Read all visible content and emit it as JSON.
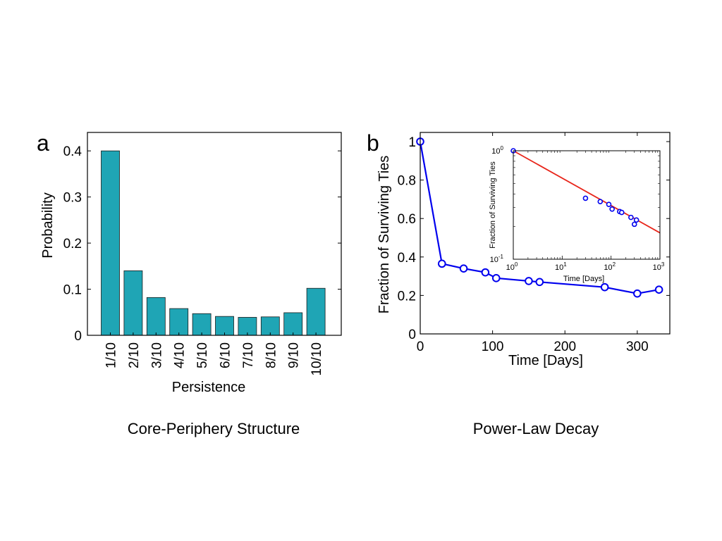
{
  "captions": {
    "left": "Core-Periphery Structure",
    "right": "Power-Law Decay"
  },
  "chart_data": [
    {
      "panel": "a",
      "type": "bar",
      "title": "",
      "xlabel": "Persistence",
      "ylabel": "Probability",
      "categories": [
        "1/10",
        "2/10",
        "3/10",
        "4/10",
        "5/10",
        "6/10",
        "7/10",
        "8/10",
        "9/10",
        "10/10"
      ],
      "values": [
        0.4,
        0.14,
        0.082,
        0.058,
        0.047,
        0.041,
        0.039,
        0.04,
        0.049,
        0.102
      ],
      "ylim": [
        0,
        0.44
      ],
      "yticks": [
        0,
        0.1,
        0.2,
        0.3,
        0.4
      ],
      "ytick_labels": [
        "0",
        "0.1",
        "0.2",
        "0.3",
        "0.4"
      ],
      "bar_color": "#1fa5b5",
      "grid": false
    },
    {
      "panel": "b",
      "type": "line",
      "title": "",
      "xlabel": "Time [Days]",
      "ylabel": "Fraction of Surviving Ties",
      "x": [
        0,
        30,
        60,
        90,
        105,
        150,
        165,
        255,
        300,
        330
      ],
      "y": [
        1.0,
        0.365,
        0.34,
        0.32,
        0.29,
        0.275,
        0.27,
        0.243,
        0.21,
        0.23
      ],
      "xlim": [
        0,
        345
      ],
      "ylim": [
        0,
        1
      ],
      "xticks": [
        0,
        100,
        200,
        300
      ],
      "xtick_labels": [
        "0",
        "100",
        "200",
        "300"
      ],
      "yticks": [
        0,
        0.2,
        0.4,
        0.6,
        0.8,
        1
      ],
      "ytick_labels": [
        "0",
        "0.2",
        "0.4",
        "0.6",
        "0.8",
        "1"
      ],
      "line_color": "#0000ee",
      "grid": false,
      "inset": {
        "type": "scatter",
        "xscale": "log",
        "yscale": "log",
        "xlabel": "Time [Days]",
        "ylabel": "Fraction of Surviving Ties",
        "xlim": [
          1,
          1000
        ],
        "ylim": [
          0.1,
          1
        ],
        "xticks": [
          1,
          10,
          100,
          1000
        ],
        "xtick_exponents": [
          "0",
          "1",
          "2",
          "3"
        ],
        "yticks": [
          0.1,
          1
        ],
        "ytick_exponents": [
          "-1",
          "0"
        ],
        "base_label": "10",
        "x": [
          1,
          30,
          60,
          90,
          105,
          150,
          165,
          255,
          300,
          330
        ],
        "y": [
          1.0,
          0.365,
          0.34,
          0.32,
          0.29,
          0.275,
          0.27,
          0.243,
          0.21,
          0.23
        ],
        "fit_line": {
          "x": [
            1,
            1000
          ],
          "y": [
            1.0,
            0.175
          ]
        },
        "point_color": "#0000ee",
        "fit_color": "#e8251a"
      }
    }
  ]
}
